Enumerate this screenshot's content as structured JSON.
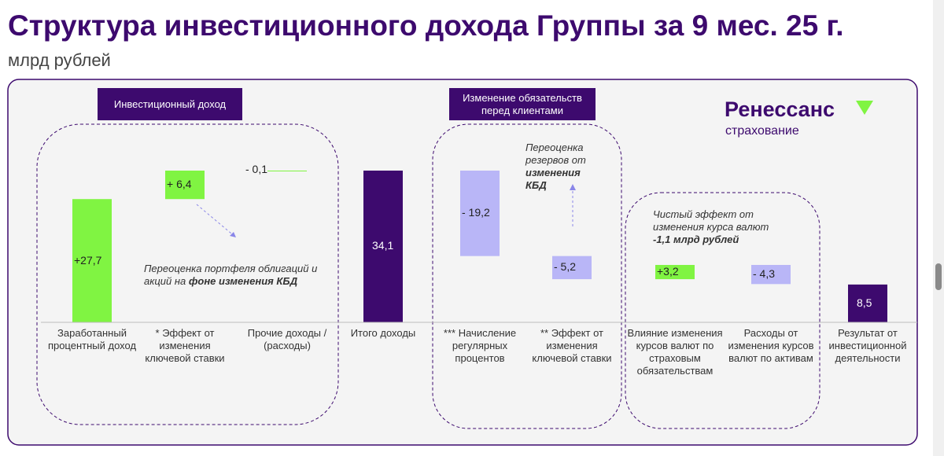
{
  "chart_data": {
    "type": "waterfall",
    "title": "Структура инвестиционного дохода Группы за 9 мес. 25 г.",
    "subtitle": "млрд рублей",
    "categories": [
      "Заработанный процентный доход",
      "* Эффект от изменения ключевой ставки",
      "Прочие доходы / (расходы)",
      "Итого доходы",
      "*** Начисление регулярных процентов",
      "** Эффект от изменения ключевой ставки",
      "Влияние изменения курсов валют по страховым обязательствам",
      "Расходы от изменения курсов валют по активам",
      "Результат от инвестиционной деятельности"
    ],
    "values": [
      27.7,
      6.4,
      -0.1,
      34.1,
      -19.2,
      -5.2,
      3.2,
      -4.3,
      8.5
    ],
    "value_labels": [
      "+27,7",
      "+ 6,4",
      "- 0,1",
      "34,1",
      "- 19,2",
      "- 5,2",
      "+3,2",
      "- 4,3",
      "8,5"
    ],
    "is_total": [
      false,
      false,
      false,
      true,
      false,
      false,
      false,
      false,
      true
    ],
    "colors": [
      "#80f442",
      "#80f442",
      "#80f442",
      "#3d0a6e",
      "#b9b6f7",
      "#b9b6f7",
      "#80f442",
      "#b9b6f7",
      "#3d0a6e"
    ],
    "groups": [
      "Инвестиционный доход",
      "Изменение обязательств перед клиентами"
    ],
    "annotations": [
      {
        "text": "Переоценка портфеля облигаций и акций на ",
        "bold": "фоне изменения КБД"
      },
      {
        "text": "Переоценка резервов от ",
        "bold": "изменения КБД"
      },
      {
        "text": "Чистый эффект от изменения курса валют ",
        "bold": "-1,1 млрд рублей"
      }
    ]
  },
  "logo": {
    "name": "Ренессанс",
    "tagline": "страхование"
  }
}
